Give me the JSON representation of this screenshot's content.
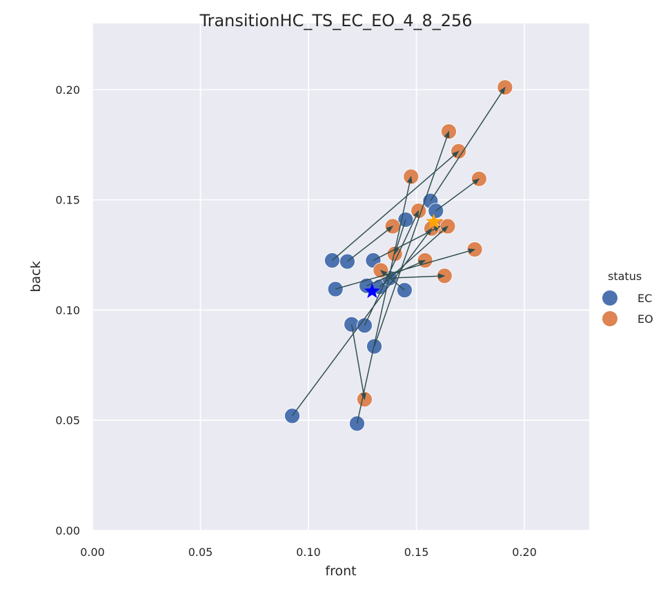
{
  "chart_data": {
    "type": "scatter",
    "title": "TransitionHC_TS_EC_EO_4_8_256",
    "xlabel": "front",
    "ylabel": "back",
    "xlim": [
      0,
      0.23
    ],
    "ylim": [
      0,
      0.23
    ],
    "xticks": [
      "0.00",
      "0.05",
      "0.10",
      "0.15",
      "0.20"
    ],
    "yticks": [
      "0.00",
      "0.05",
      "0.10",
      "0.15",
      "0.20"
    ],
    "grid": true,
    "legend": {
      "title": "status",
      "placement": "right"
    },
    "colors": {
      "background": "#eaeaf2",
      "grid": "#ffffff",
      "EC": "#4c72b0",
      "EO": "#dd8452",
      "arrow": "#2f4f4f",
      "ec_centroid": "#0000ff",
      "eo_centroid": "#ffa500"
    },
    "series": [
      {
        "name": "EC",
        "points": [
          [
            0.1565,
            0.1495
          ],
          [
            0.159,
            0.145
          ],
          [
            0.145,
            0.141
          ],
          [
            0.111,
            0.1225
          ],
          [
            0.118,
            0.122
          ],
          [
            0.13,
            0.1225
          ],
          [
            0.1125,
            0.1095
          ],
          [
            0.127,
            0.111
          ],
          [
            0.133,
            0.1105
          ],
          [
            0.1375,
            0.1145
          ],
          [
            0.1445,
            0.109
          ],
          [
            0.12,
            0.0935
          ],
          [
            0.126,
            0.093
          ],
          [
            0.1305,
            0.0835
          ],
          [
            0.0925,
            0.052
          ],
          [
            0.1225,
            0.0485
          ]
        ]
      },
      {
        "name": "EO",
        "points": [
          [
            0.191,
            0.201
          ],
          [
            0.165,
            0.181
          ],
          [
            0.1695,
            0.172
          ],
          [
            0.1475,
            0.1605
          ],
          [
            0.179,
            0.1595
          ],
          [
            0.151,
            0.145
          ],
          [
            0.139,
            0.138
          ],
          [
            0.161,
            0.138
          ],
          [
            0.1645,
            0.138
          ],
          [
            0.157,
            0.137
          ],
          [
            0.14,
            0.1255
          ],
          [
            0.177,
            0.1275
          ],
          [
            0.1335,
            0.118
          ],
          [
            0.154,
            0.1225
          ],
          [
            0.163,
            0.1155
          ],
          [
            0.126,
            0.0595
          ]
        ]
      }
    ],
    "arrows": [
      [
        [
          0.1565,
          0.1495
        ],
        [
          0.191,
          0.201
        ]
      ],
      [
        [
          0.111,
          0.1225
        ],
        [
          0.1695,
          0.172
        ]
      ],
      [
        [
          0.1305,
          0.0835
        ],
        [
          0.165,
          0.181
        ]
      ],
      [
        [
          0.1225,
          0.0485
        ],
        [
          0.1475,
          0.1605
        ]
      ],
      [
        [
          0.159,
          0.145
        ],
        [
          0.179,
          0.1595
        ]
      ],
      [
        [
          0.118,
          0.122
        ],
        [
          0.139,
          0.138
        ]
      ],
      [
        [
          0.13,
          0.1225
        ],
        [
          0.161,
          0.138
        ]
      ],
      [
        [
          0.1125,
          0.1095
        ],
        [
          0.177,
          0.1275
        ]
      ],
      [
        [
          0.145,
          0.141
        ],
        [
          0.14,
          0.1255
        ]
      ],
      [
        [
          0.12,
          0.0935
        ],
        [
          0.126,
          0.0595
        ]
      ],
      [
        [
          0.0925,
          0.052
        ],
        [
          0.157,
          0.137
        ]
      ],
      [
        [
          0.126,
          0.093
        ],
        [
          0.151,
          0.145
        ]
      ],
      [
        [
          0.1445,
          0.109
        ],
        [
          0.1335,
          0.118
        ]
      ],
      [
        [
          0.127,
          0.111
        ],
        [
          0.154,
          0.1225
        ]
      ],
      [
        [
          0.1375,
          0.1145
        ],
        [
          0.163,
          0.1155
        ]
      ],
      [
        [
          0.133,
          0.1105
        ],
        [
          0.1645,
          0.138
        ]
      ]
    ],
    "centroids": [
      {
        "name": "EC",
        "point": [
          0.1295,
          0.1085
        ]
      },
      {
        "name": "EO",
        "point": [
          0.158,
          0.14
        ]
      }
    ]
  }
}
